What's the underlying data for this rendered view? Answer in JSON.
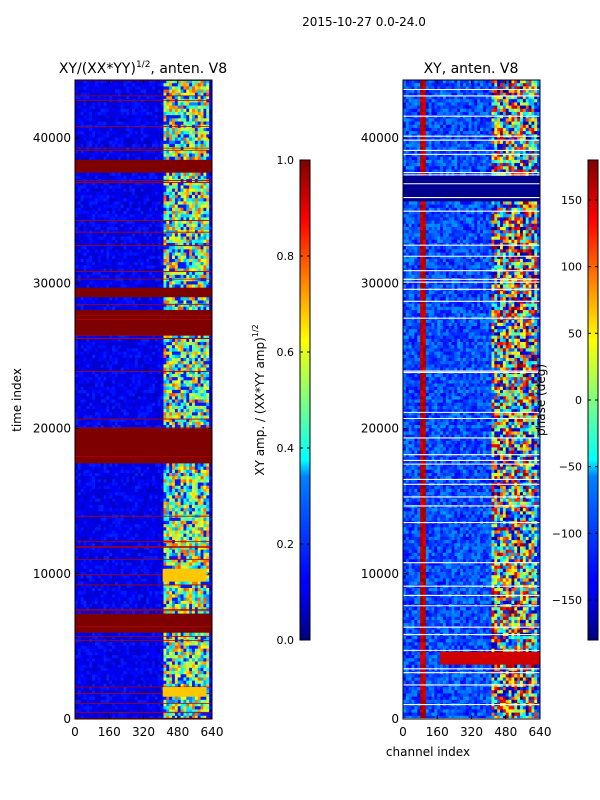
{
  "figure_title": "2015-10-27 0.0-24.0",
  "chart_data": [
    {
      "type": "heatmap",
      "title": "XY/(XX*YY)",
      "title_sup": "1/2",
      "title_suffix": ", anten. V8",
      "xlabel": "",
      "ylabel": "time index",
      "xlim": [
        0,
        640
      ],
      "ylim": [
        0,
        44000
      ],
      "xticks": [
        0,
        160,
        320,
        480,
        640
      ],
      "yticks": [
        0,
        10000,
        20000,
        30000,
        40000
      ],
      "colormap": "jet",
      "colorbar": {
        "min": 0.0,
        "max": 1.0,
        "ticks": [
          "0.0",
          "0.2",
          "0.4",
          "0.6",
          "0.8",
          "1.0"
        ],
        "label": "XY amp. / (XX*YY amp)",
        "label_sup": "1/2"
      }
    },
    {
      "type": "heatmap",
      "title": "XY, anten. V8",
      "xlabel": "channel index",
      "ylabel": "",
      "xlim": [
        0,
        640
      ],
      "ylim": [
        0,
        44000
      ],
      "xticks": [
        0,
        160,
        320,
        480,
        640
      ],
      "yticks": [
        0,
        10000,
        20000,
        30000,
        40000
      ],
      "colormap": "jet",
      "colorbar": {
        "min": -180,
        "max": 180,
        "ticks": [
          "-150",
          "-100",
          "-50",
          "0",
          "50",
          "100",
          "150"
        ],
        "label": "phase (deg)"
      }
    }
  ],
  "colors": {
    "jet_dark_blue": "#00007f",
    "jet_blue": "#0000ff",
    "jet_cyan": "#00ffff",
    "jet_yellow": "#ffff00",
    "jet_red": "#ff0000",
    "jet_dark_red": "#7f0000"
  }
}
